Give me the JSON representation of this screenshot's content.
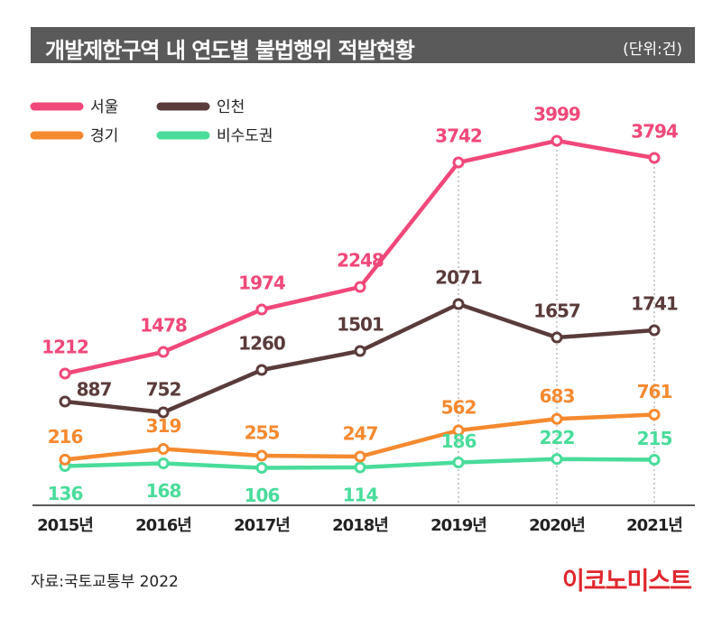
{
  "header": {
    "title": "개발제한구역 내 연도별 불법행위 적발현황",
    "unit": "(단위:건)"
  },
  "footer": {
    "source": "자료:국토교통부 2022",
    "logo": "이코노미스트"
  },
  "colors": {
    "서울": "#f0487a",
    "인천": "#5a3b3b",
    "경기": "#f5892f",
    "비수도권": "#49dc9a"
  },
  "chart_data": {
    "type": "line",
    "title": "개발제한구역 내 연도별 불법행위 적발현황",
    "xlabel": "",
    "ylabel": "",
    "unit": "(단위:건)",
    "categories": [
      "2015년",
      "2016년",
      "2017년",
      "2018년",
      "2019년",
      "2020년",
      "2021년"
    ],
    "series": [
      {
        "name": "서울",
        "values": [
          1212,
          1478,
          1974,
          2248,
          3742,
          3999,
          3794
        ]
      },
      {
        "name": "인천",
        "values": [
          887,
          752,
          1260,
          1501,
          2071,
          1657,
          1741
        ]
      },
      {
        "name": "경기",
        "values": [
          216,
          319,
          255,
          247,
          562,
          683,
          761
        ]
      },
      {
        "name": "비수도권",
        "values": [
          136,
          168,
          106,
          114,
          186,
          222,
          215
        ]
      }
    ],
    "legend": {
      "position": "top-left",
      "order": [
        "서울",
        "인천",
        "경기",
        "비수도권"
      ]
    },
    "grid": "vertical dashed lines from 2019년 to 2021년"
  }
}
